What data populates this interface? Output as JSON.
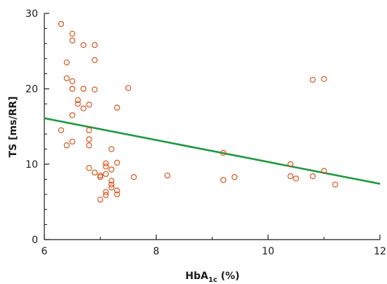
{
  "chart_data": {
    "type": "scatter",
    "title": "",
    "xlabel": "HbA",
    "xlabel_sub": "1c",
    "xlabel_suffix": " (%)",
    "ylabel": "TS [ms/RR]",
    "xlim": [
      6,
      12
    ],
    "ylim": [
      0,
      30
    ],
    "xticks": [
      "6",
      "8",
      "10",
      "12"
    ],
    "yticks": [
      "0",
      "10",
      "20",
      "30"
    ],
    "x_minor_ticks": [
      7,
      9,
      11
    ],
    "y_minor_ticks": [
      2,
      4,
      6,
      8,
      12,
      14,
      16,
      18,
      22,
      24,
      26,
      28
    ],
    "grid": false,
    "colors": {
      "points": "#d9541e",
      "trend": "#1a9a3c",
      "axes": "#1a1a1a"
    },
    "points": [
      {
        "x": 6.3,
        "y": 28.6
      },
      {
        "x": 6.5,
        "y": 27.3
      },
      {
        "x": 6.5,
        "y": 26.4
      },
      {
        "x": 6.7,
        "y": 25.8
      },
      {
        "x": 6.9,
        "y": 25.8
      },
      {
        "x": 6.9,
        "y": 23.8
      },
      {
        "x": 6.4,
        "y": 23.5
      },
      {
        "x": 6.4,
        "y": 21.4
      },
      {
        "x": 6.5,
        "y": 21.0
      },
      {
        "x": 6.5,
        "y": 20.0
      },
      {
        "x": 6.7,
        "y": 20.0
      },
      {
        "x": 6.9,
        "y": 19.9
      },
      {
        "x": 6.6,
        "y": 18.5
      },
      {
        "x": 6.6,
        "y": 18.0
      },
      {
        "x": 6.8,
        "y": 17.9
      },
      {
        "x": 6.7,
        "y": 17.4
      },
      {
        "x": 6.5,
        "y": 16.5
      },
      {
        "x": 7.5,
        "y": 20.1
      },
      {
        "x": 7.3,
        "y": 17.5
      },
      {
        "x": 6.3,
        "y": 14.5
      },
      {
        "x": 6.8,
        "y": 14.5
      },
      {
        "x": 6.8,
        "y": 13.3
      },
      {
        "x": 6.5,
        "y": 13.0
      },
      {
        "x": 6.4,
        "y": 12.5
      },
      {
        "x": 6.8,
        "y": 12.5
      },
      {
        "x": 7.2,
        "y": 12.0
      },
      {
        "x": 7.3,
        "y": 10.2
      },
      {
        "x": 7.1,
        "y": 10.1
      },
      {
        "x": 7.1,
        "y": 9.7
      },
      {
        "x": 6.8,
        "y": 9.5
      },
      {
        "x": 7.2,
        "y": 9.3
      },
      {
        "x": 6.9,
        "y": 8.9
      },
      {
        "x": 7.1,
        "y": 8.7
      },
      {
        "x": 7.0,
        "y": 8.5
      },
      {
        "x": 7.0,
        "y": 8.3
      },
      {
        "x": 7.6,
        "y": 8.3
      },
      {
        "x": 7.2,
        "y": 7.8
      },
      {
        "x": 7.2,
        "y": 7.3
      },
      {
        "x": 7.2,
        "y": 6.9
      },
      {
        "x": 7.3,
        "y": 6.5
      },
      {
        "x": 7.1,
        "y": 6.3
      },
      {
        "x": 7.1,
        "y": 5.9
      },
      {
        "x": 7.3,
        "y": 6.0
      },
      {
        "x": 7.0,
        "y": 5.3
      },
      {
        "x": 8.2,
        "y": 8.5
      },
      {
        "x": 9.2,
        "y": 11.5
      },
      {
        "x": 9.2,
        "y": 7.9
      },
      {
        "x": 9.4,
        "y": 8.3
      },
      {
        "x": 10.4,
        "y": 10.0
      },
      {
        "x": 10.4,
        "y": 8.4
      },
      {
        "x": 10.5,
        "y": 8.1
      },
      {
        "x": 10.8,
        "y": 8.4
      },
      {
        "x": 11.0,
        "y": 9.1
      },
      {
        "x": 10.8,
        "y": 21.2
      },
      {
        "x": 11.0,
        "y": 21.3
      },
      {
        "x": 11.2,
        "y": 7.3
      }
    ],
    "trendline": {
      "x": [
        6,
        12
      ],
      "y": [
        16.1,
        7.4
      ]
    }
  }
}
